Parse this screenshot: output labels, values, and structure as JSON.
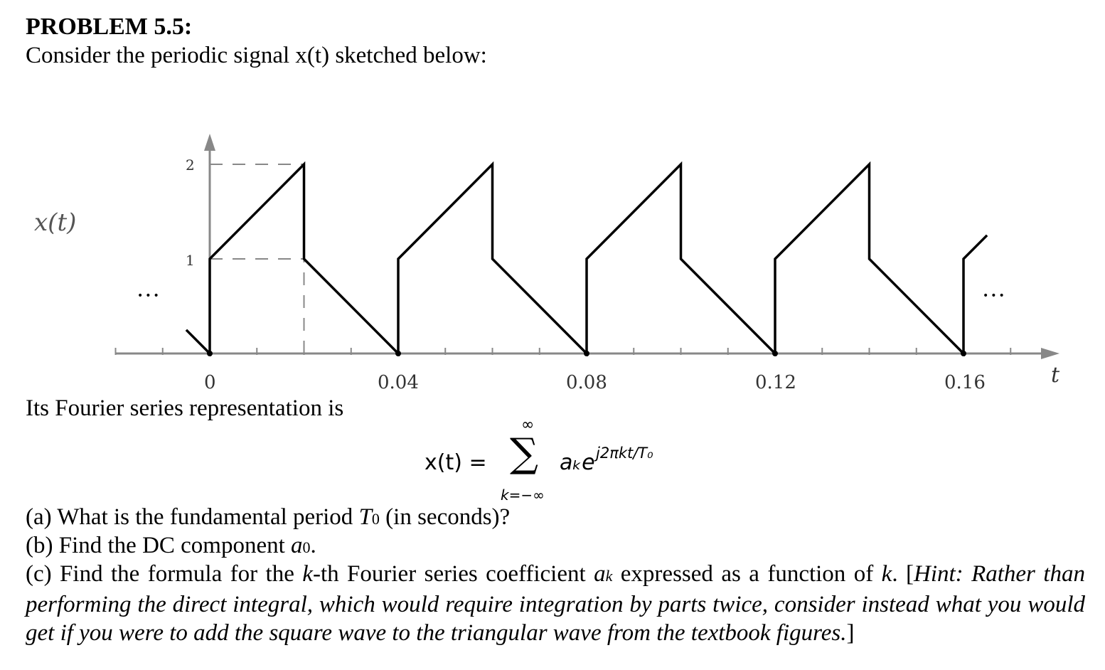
{
  "problem": {
    "title": "PROBLEM 5.5:",
    "intro": "Consider the periodic signal x(t) sketched below:"
  },
  "figure": {
    "ylabel": "x(t)",
    "xlabel": "t",
    "y_tick_labels": [
      "1",
      "2"
    ],
    "x_tick_labels": [
      "0",
      "0.04",
      "0.08",
      "0.12",
      "0.16"
    ],
    "ellipsis_left": "•••",
    "ellipsis_right": "•••"
  },
  "chart_data": {
    "type": "line",
    "title": "",
    "xlabel": "t",
    "ylabel": "x(t)",
    "xlim": [
      -0.02,
      0.18
    ],
    "ylim": [
      0,
      2.2
    ],
    "period": 0.04,
    "series": [
      {
        "x": [
          -0.005,
          0,
          0,
          0.02,
          0.02,
          0.04,
          0.04,
          0.06,
          0.06,
          0.08,
          0.08,
          0.1,
          0.1,
          0.12,
          0.12,
          0.14,
          0.14,
          0.16,
          0.16,
          0.165
        ],
        "y": [
          0.25,
          0,
          1,
          2,
          1,
          0,
          1,
          2,
          1,
          0,
          1,
          2,
          1,
          0,
          1,
          2,
          1,
          0,
          1,
          1.25
        ]
      }
    ],
    "dashed_guides": [
      {
        "y": 2,
        "x": [
          0,
          0.02
        ]
      },
      {
        "y": 1,
        "x": [
          0,
          0.02
        ]
      },
      {
        "x": 0.02,
        "y": [
          0,
          1
        ]
      }
    ],
    "grid": false
  },
  "fourier": {
    "intro": "Its Fourier series representation is",
    "lhs": "x(t) =",
    "sum_upper": "∞",
    "sum_symbol": "∑",
    "sum_lower": "k=−∞",
    "term": "aₖe",
    "exponent": "j2πkt/T₀"
  },
  "questions": {
    "a_prefix": "(a) What is the fundamental period ",
    "a_var": "T",
    "a_sub": "0",
    "a_suffix": " (in seconds)?",
    "b_prefix": "(b) Find the DC component ",
    "b_var": "a",
    "b_sub": "0",
    "b_suffix": ".",
    "c_prefix": "(c) Find the formula for the ",
    "c_k1": "k",
    "c_mid1": "-th Fourier series coefficient ",
    "c_var": "a",
    "c_sub": "k",
    "c_mid2": " expressed as a function of ",
    "c_k2": "k",
    "c_mid3": ". [",
    "c_hint": "Hint: Rather than performing the direct integral, which would require integration by parts twice, consider instead what you would get if you were to add the square wave to the triangular wave from the textbook figures.",
    "c_end": "]"
  }
}
